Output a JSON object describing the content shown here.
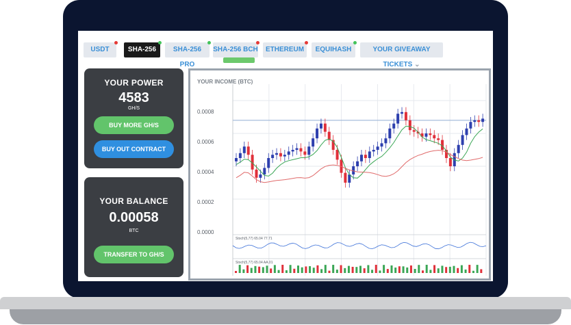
{
  "tabs": [
    {
      "label": "USDT",
      "dot": "#e53935",
      "active": false
    },
    {
      "label": "SHA-256",
      "dot": "#43c35a",
      "active": true
    },
    {
      "label": "SHA-256 PRO",
      "dot": "#43c35a",
      "active": false
    },
    {
      "label": "SHA-256 BCH",
      "dot": "#e53935",
      "active": false
    },
    {
      "label": "ETHEREUM",
      "dot": "#e53935",
      "active": false
    },
    {
      "label": "EQUIHASH",
      "dot": "#43c35a",
      "active": false
    },
    {
      "label": "YOUR GIVEAWAY TICKETS",
      "dot": null,
      "active": false
    }
  ],
  "power": {
    "title": "YOUR POWER",
    "value": "4583",
    "unit": "GH/S",
    "buy_label": "BUY MORE GH/S",
    "buyout_label": "BUY OUT CONTRACT"
  },
  "balance": {
    "title": "YOUR BALANCE",
    "value": "0.00058",
    "unit": "BTC",
    "transfer_label": "TRANSFER TO GH/S"
  },
  "chart": {
    "title": "YOUR INCOME (BTC)",
    "yticks": [
      "0.0008",
      "0.0006",
      "0.0004",
      "0.0002",
      "0.0000"
    ],
    "ind1_label": "Stoch(5,77) 65.04 77.71",
    "ind2_label": "Stoch(5,77) 65.04 AA.01"
  },
  "colors": {
    "up": "#2d3fae",
    "down": "#e0303a",
    "ma_green": "#3aa655",
    "ma_red": "#e06a6a",
    "refline": "#9db6d8"
  },
  "chart_data": {
    "type": "line",
    "ylim": [
      0,
      0.0009
    ],
    "candles": [
      0.00045,
      0.00048,
      0.00052,
      0.00047,
      0.00038,
      0.00033,
      0.00035,
      0.00039,
      0.00045,
      0.00047,
      0.00048,
      0.00046,
      0.00047,
      0.00049,
      0.0005,
      0.00051,
      0.00049,
      0.00047,
      0.00052,
      0.00057,
      0.00063,
      0.00066,
      0.00061,
      0.00056,
      0.0005,
      0.00044,
      0.00036,
      0.0003,
      0.00035,
      0.0004,
      0.00043,
      0.00047,
      0.00045,
      0.00049,
      0.0005,
      0.00052,
      0.00054,
      0.00057,
      0.00063,
      0.00066,
      0.00072,
      0.00073,
      0.00068,
      0.00062,
      0.00061,
      0.0006,
      0.00058,
      0.0006,
      0.00059,
      0.00057,
      0.00056,
      0.0005,
      0.00045,
      0.0004,
      0.00048,
      0.00053,
      0.00059,
      0.00063,
      0.00067,
      0.00068,
      0.00067,
      0.00069
    ]
  }
}
